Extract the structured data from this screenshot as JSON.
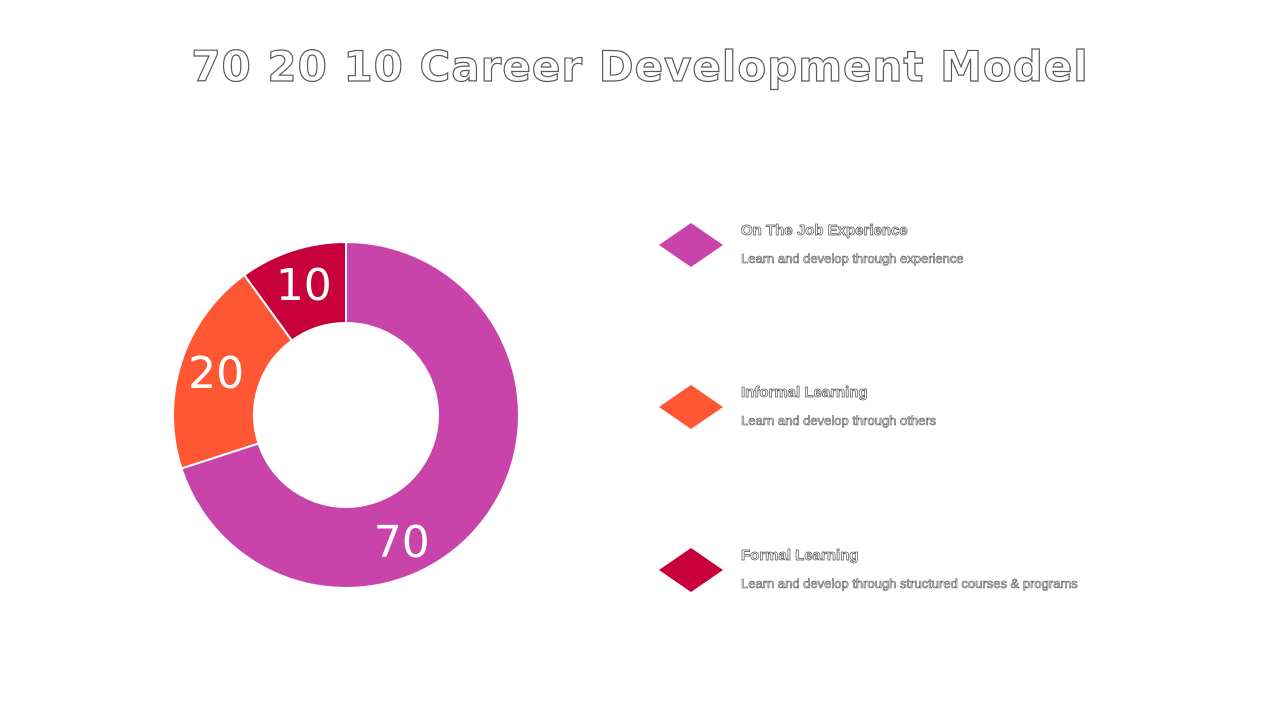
{
  "title": "70 20 10 Career Development Model",
  "chart_data": {
    "type": "pie",
    "categories": [
      "On The Job Experience",
      "Informal Learning",
      "Formal Learning"
    ],
    "values": [
      70,
      20,
      10
    ],
    "colors": [
      "#c844aa",
      "#ff5733",
      "#c7003b"
    ],
    "data_labels": [
      "70",
      "20",
      "10"
    ]
  },
  "legend": [
    {
      "title": "On The Job Experience",
      "description": "Learn and develop through experience",
      "color": "#c844aa"
    },
    {
      "title": "Informal Learning",
      "description": "Learn and develop through others",
      "color": "#ff5733"
    },
    {
      "title": "Formal Learning",
      "description": "Learn and develop through structured courses & programs",
      "color": "#c7003b"
    }
  ]
}
